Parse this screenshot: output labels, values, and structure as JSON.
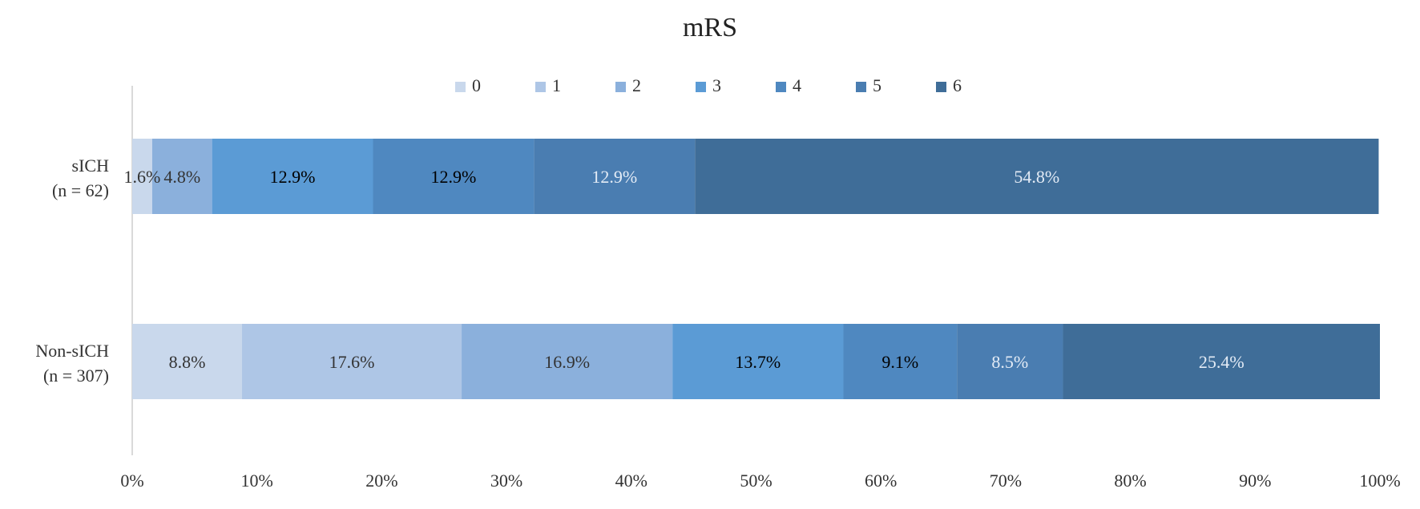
{
  "chart_data": {
    "type": "bar",
    "orientation": "horizontal",
    "stacked": "percent",
    "title": "mRS",
    "categories": [
      [
        "sICH",
        "(n = 62)"
      ],
      [
        "Non-sICH",
        "(n = 307)"
      ]
    ],
    "series": [
      {
        "name": "0",
        "color": "#C9D8EC",
        "values": [
          1.6,
          8.8
        ],
        "labels": [
          "1.6%",
          "8.8%"
        ],
        "label_color": [
          "#333333",
          "#333333"
        ]
      },
      {
        "name": "1",
        "color": "#AEC6E6",
        "values": [
          0,
          17.6
        ],
        "labels": [
          "",
          "17.6%"
        ],
        "label_color": [
          "#333333",
          "#333333"
        ]
      },
      {
        "name": "2",
        "color": "#8BB0DC",
        "values": [
          4.8,
          16.9
        ],
        "labels": [
          "4.8%",
          "16.9%"
        ],
        "label_color": [
          "#333333",
          "#333333"
        ]
      },
      {
        "name": "3",
        "color": "#5B9BD5",
        "values": [
          12.9,
          13.7
        ],
        "labels": [
          "12.9%",
          "13.7%"
        ],
        "label_color": [
          "#000000",
          "#000000"
        ]
      },
      {
        "name": "4",
        "color": "#4F88C0",
        "values": [
          12.9,
          9.1
        ],
        "labels": [
          "12.9%",
          "9.1%"
        ],
        "label_color": [
          "#000000",
          "#000000"
        ]
      },
      {
        "name": "5",
        "color": "#4A7DB1",
        "values": [
          12.9,
          8.5
        ],
        "labels": [
          "12.9%",
          "8.5%"
        ],
        "label_color": [
          "#E4ECF6",
          "#E4ECF6"
        ]
      },
      {
        "name": "6",
        "color": "#3F6D98",
        "values": [
          54.8,
          25.4
        ],
        "labels": [
          "54.8%",
          "25.4%"
        ],
        "label_color": [
          "#E4ECF6",
          "#E4ECF6"
        ]
      }
    ],
    "xlim": [
      0,
      100
    ],
    "x_ticks": [
      "0%",
      "10%",
      "20%",
      "30%",
      "40%",
      "50%",
      "60%",
      "70%",
      "80%",
      "90%",
      "100%"
    ],
    "legend_position": "top",
    "grid": false
  }
}
